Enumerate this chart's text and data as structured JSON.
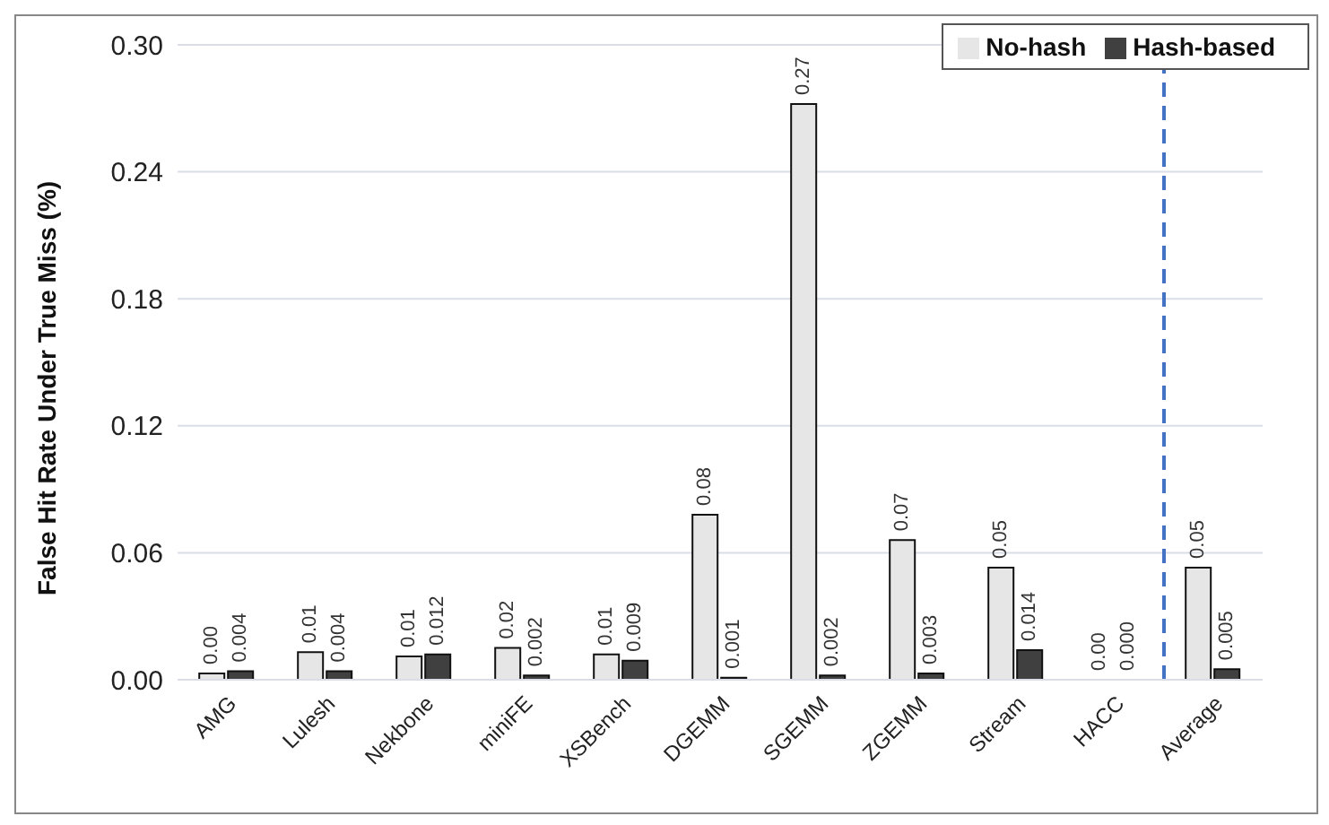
{
  "chart_data": {
    "type": "bar",
    "ylabel": "False Hit Rate Under True Miss (%)",
    "categories": [
      "AMG",
      "Lulesh",
      "Nekbone",
      "miniFE",
      "XSBench",
      "DGEMM",
      "SGEMM",
      "ZGEMM",
      "Stream",
      "HACC",
      "Average"
    ],
    "series": [
      {
        "name": "No-hash",
        "color": "#e6e6e6",
        "values": [
          0.003,
          0.013,
          0.011,
          0.015,
          0.012,
          0.078,
          0.272,
          0.066,
          0.053,
          0,
          0.053
        ],
        "value_labels": [
          "0.00",
          "0.01",
          "0.01",
          "0.02",
          "0.01",
          "0.08",
          "0.27",
          "0.07",
          "0.05",
          "0.00",
          "0.05"
        ]
      },
      {
        "name": "Hash-based",
        "color": "#404040",
        "values": [
          0.004,
          0.004,
          0.012,
          0.002,
          0.009,
          0.001,
          0.002,
          0.003,
          0.014,
          0,
          0.005
        ],
        "value_labels": [
          "0.004",
          "0.004",
          "0.012",
          "0.002",
          "0.009",
          "0.001",
          "0.002",
          "0.003",
          "0.014",
          "0.000",
          "0.005"
        ]
      }
    ],
    "ylim": [
      0,
      0.3
    ],
    "yticks": [
      {
        "value": 0,
        "label": "0.00"
      },
      0.06,
      0.12,
      0.18,
      0.24,
      {
        "value": 0.3,
        "label": "0.30"
      }
    ],
    "grid": "y",
    "legend": "top right",
    "ref_lines": [
      {
        "axis": "x",
        "value": "Average",
        "color": "#4472c4",
        "line_style": "dashed"
      }
    ]
  }
}
